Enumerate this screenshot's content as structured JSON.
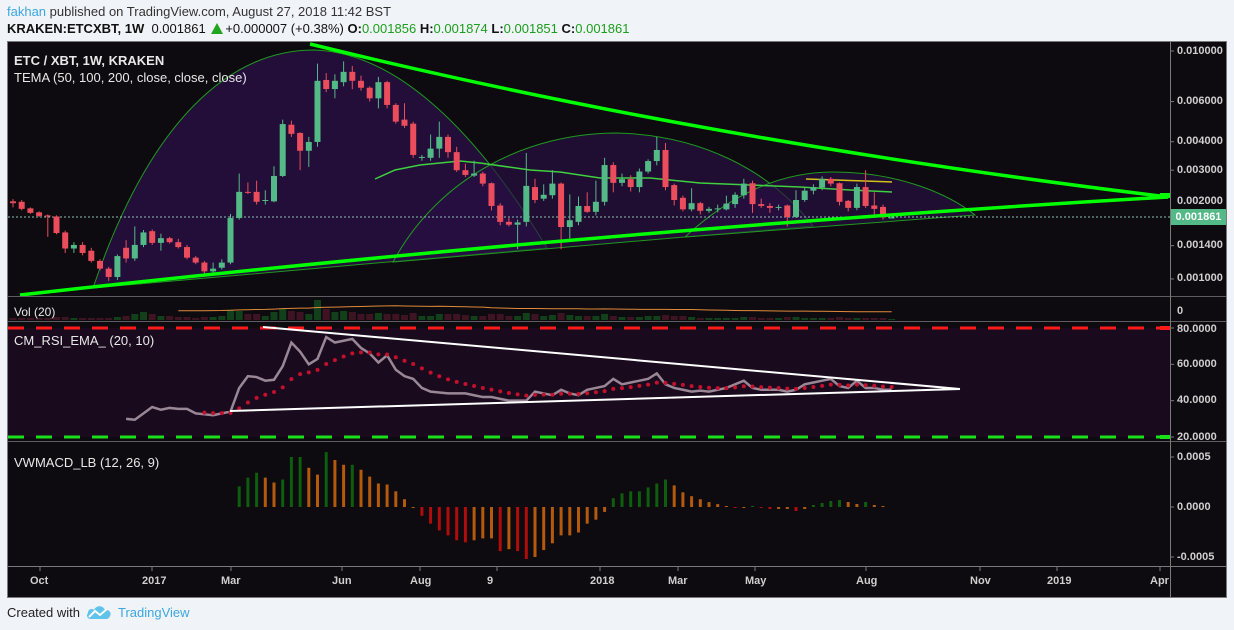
{
  "header": {
    "author": "fakhan",
    "published_text": "published on TradingView.com, August 27, 2018 11:42 BST",
    "symbol": "KRAKEN:ETCXBT, 1W",
    "last": "0.001861",
    "change": "+0.000007 (+0.38%)",
    "o_label": "O:",
    "o": "0.001856",
    "h_label": "H:",
    "h": "0.001874",
    "l_label": "L:",
    "l": "0.001851",
    "c_label": "C:",
    "c": "0.001861"
  },
  "panes": {
    "price_title": "ETC / XBT, 1W, KRAKEN",
    "tema_title": "TEMA (50, 100, 200, close, close, close)",
    "vol_title": "Vol (20)",
    "rsi_title": "CM_RSI_EMA_ (20, 10)",
    "macd_title": "VWMACD_LB (12, 26, 9)"
  },
  "footer": {
    "created_with": "Created with",
    "brand": "TradingView",
    "logo_icon": "tradingview-cloud-icon"
  },
  "colors": {
    "up": "#53b987",
    "down": "#eb4d5c",
    "trendline": "#00ff00",
    "tema": "#3fcf3f",
    "rsi_line": "#9a8796",
    "rsi_ema": "#c3102c",
    "rsi_upper": "#ff1a1a",
    "rsi_lower": "#1adf1a",
    "macd_up": "#0d5e0d",
    "macd_fade": "#b45a0c",
    "macd_down": "#b00c0c",
    "price_tag": "#53b987"
  },
  "chart_data": {
    "type": "candlestick",
    "interval": "1W",
    "price_scale": "log",
    "x_tick_labels": [
      "Oct",
      "2017",
      "Mar",
      "Jun",
      "Aug",
      "9",
      "2018",
      "Mar",
      "May",
      "Aug",
      "Nov",
      "2019",
      "Apr"
    ],
    "price_ticks": [
      "0.010000",
      "0.006000",
      "0.004000",
      "0.003000",
      "0.002000",
      "0.001400",
      "0.001000"
    ],
    "price_tick_values": [
      0.01,
      0.006,
      0.004,
      0.003,
      0.002,
      0.0014,
      0.001
    ],
    "current_price": "0.001861",
    "current_price_value": 0.001861,
    "ohlc": [
      [
        0.00219,
        0.00224,
        0.00206,
        0.00215
      ],
      [
        0.00218,
        0.00222,
        0.002,
        0.00203
      ],
      [
        0.00204,
        0.00206,
        0.00193,
        0.00195
      ],
      [
        0.00196,
        0.00198,
        0.00187,
        0.00189
      ],
      [
        0.0019,
        0.00192,
        0.00153,
        0.00188
      ],
      [
        0.00188,
        0.0019,
        0.00157,
        0.00159
      ],
      [
        0.0016,
        0.00163,
        0.0013,
        0.00136
      ],
      [
        0.00136,
        0.00145,
        0.0013,
        0.00141
      ],
      [
        0.00141,
        0.00145,
        0.00127,
        0.0013
      ],
      [
        0.00133,
        0.00137,
        0.00118,
        0.0012
      ],
      [
        0.0012,
        0.00122,
        0.00109,
        0.00111
      ],
      [
        0.00111,
        0.00113,
        0.00098,
        0.00102
      ],
      [
        0.00102,
        0.00128,
        0.00099,
        0.00126
      ],
      [
        0.00137,
        0.00148,
        0.00118,
        0.00123
      ],
      [
        0.00123,
        0.0017,
        0.0012,
        0.00141
      ],
      [
        0.00141,
        0.00164,
        0.00138,
        0.0016
      ],
      [
        0.00162,
        0.00165,
        0.00141,
        0.00144
      ],
      [
        0.00144,
        0.00158,
        0.00133,
        0.00151
      ],
      [
        0.00151,
        0.00153,
        0.00143,
        0.00145
      ],
      [
        0.00145,
        0.0015,
        0.00136,
        0.00138
      ],
      [
        0.00138,
        0.00141,
        0.00122,
        0.00124
      ],
      [
        0.00124,
        0.00126,
        0.00116,
        0.00118
      ],
      [
        0.00118,
        0.0012,
        0.00104,
        0.00108
      ],
      [
        0.00108,
        0.00118,
        0.00106,
        0.00111
      ],
      [
        0.00112,
        0.00122,
        0.0011,
        0.00118
      ],
      [
        0.00118,
        0.00193,
        0.00116,
        0.00185
      ],
      [
        0.00185,
        0.0029,
        0.00182,
        0.00241
      ],
      [
        0.00241,
        0.00265,
        0.00236,
        0.0024
      ],
      [
        0.00241,
        0.0027,
        0.00212,
        0.00218
      ],
      [
        0.0022,
        0.00245,
        0.00212,
        0.00222
      ],
      [
        0.00219,
        0.00312,
        0.00217,
        0.00283
      ],
      [
        0.00283,
        0.005,
        0.0028,
        0.00478
      ],
      [
        0.00475,
        0.00495,
        0.0042,
        0.00433
      ],
      [
        0.00437,
        0.0044,
        0.003,
        0.00365
      ],
      [
        0.00365,
        0.0042,
        0.0031,
        0.00399
      ],
      [
        0.00399,
        0.0088,
        0.0038,
        0.0074
      ],
      [
        0.00746,
        0.008,
        0.0066,
        0.00681
      ],
      [
        0.00681,
        0.0079,
        0.0062,
        0.0074
      ],
      [
        0.0073,
        0.009,
        0.007,
        0.0081
      ],
      [
        0.0081,
        0.0086,
        0.0068,
        0.0074
      ],
      [
        0.0074,
        0.0078,
        0.0067,
        0.0069
      ],
      [
        0.0069,
        0.007,
        0.006,
        0.0062
      ],
      [
        0.0062,
        0.0077,
        0.0056,
        0.0073
      ],
      [
        0.0073,
        0.0074,
        0.0056,
        0.0058
      ],
      [
        0.0058,
        0.0059,
        0.0048,
        0.0049
      ],
      [
        0.005,
        0.0059,
        0.0046,
        0.0047
      ],
      [
        0.0048,
        0.0049,
        0.0034,
        0.0035
      ],
      [
        0.00343,
        0.0035,
        0.0033,
        0.00343
      ],
      [
        0.0034,
        0.0043,
        0.0033,
        0.00373
      ],
      [
        0.00373,
        0.0049,
        0.0034,
        0.0042
      ],
      [
        0.0042,
        0.0043,
        0.0034,
        0.0036
      ],
      [
        0.0036,
        0.0038,
        0.00295,
        0.003
      ],
      [
        0.003,
        0.0032,
        0.0028,
        0.00286
      ],
      [
        0.00284,
        0.0033,
        0.0028,
        0.0029
      ],
      [
        0.0029,
        0.00295,
        0.00255,
        0.00262
      ],
      [
        0.00263,
        0.00265,
        0.002,
        0.00209
      ],
      [
        0.0021,
        0.00215,
        0.00172,
        0.00178
      ],
      [
        0.00178,
        0.00185,
        0.0017,
        0.00173
      ],
      [
        0.00173,
        0.00182,
        0.00135,
        0.00177
      ],
      [
        0.00178,
        0.00357,
        0.0017,
        0.00256
      ],
      [
        0.00253,
        0.00275,
        0.00215,
        0.00222
      ],
      [
        0.00225,
        0.0026,
        0.0022,
        0.00234
      ],
      [
        0.00233,
        0.003,
        0.00225,
        0.00262
      ],
      [
        0.00262,
        0.00265,
        0.00135,
        0.00169
      ],
      [
        0.00169,
        0.00235,
        0.0015,
        0.00181
      ],
      [
        0.00178,
        0.0023,
        0.00172,
        0.00209
      ],
      [
        0.00209,
        0.0024,
        0.00195,
        0.00197
      ],
      [
        0.00197,
        0.0027,
        0.0019,
        0.00218
      ],
      [
        0.00218,
        0.0034,
        0.0021,
        0.00316
      ],
      [
        0.00316,
        0.00325,
        0.0024,
        0.00264
      ],
      [
        0.00264,
        0.0029,
        0.00255,
        0.00274
      ],
      [
        0.00274,
        0.00285,
        0.00242,
        0.00253
      ],
      [
        0.00253,
        0.00305,
        0.0024,
        0.00296
      ],
      [
        0.00296,
        0.00335,
        0.0029,
        0.00329
      ],
      [
        0.00329,
        0.0042,
        0.00315,
        0.00368
      ],
      [
        0.00368,
        0.00395,
        0.00245,
        0.00253
      ],
      [
        0.00258,
        0.00262,
        0.0021,
        0.00222
      ],
      [
        0.00227,
        0.00232,
        0.00198,
        0.00202
      ],
      [
        0.00202,
        0.0025,
        0.00198,
        0.00215
      ],
      [
        0.00215,
        0.00218,
        0.00192,
        0.00199
      ],
      [
        0.00199,
        0.00207,
        0.00195,
        0.00203
      ],
      [
        0.00202,
        0.00212,
        0.00196,
        0.00204
      ],
      [
        0.00202,
        0.00232,
        0.002,
        0.00214
      ],
      [
        0.00213,
        0.0024,
        0.00205,
        0.00234
      ],
      [
        0.00233,
        0.00275,
        0.00225,
        0.00262
      ],
      [
        0.00263,
        0.0027,
        0.00195,
        0.00213
      ],
      [
        0.00213,
        0.00225,
        0.00205,
        0.00209
      ],
      [
        0.00209,
        0.00215,
        0.00195,
        0.00205
      ],
      [
        0.00205,
        0.00212,
        0.002,
        0.00207
      ],
      [
        0.0021,
        0.00212,
        0.0017,
        0.00187
      ],
      [
        0.00187,
        0.00245,
        0.00185,
        0.00222
      ],
      [
        0.00222,
        0.00252,
        0.00218,
        0.00244
      ],
      [
        0.00244,
        0.0026,
        0.00235,
        0.00253
      ],
      [
        0.00252,
        0.00282,
        0.00245,
        0.00275
      ],
      [
        0.00275,
        0.0028,
        0.00255,
        0.00262
      ],
      [
        0.00263,
        0.00265,
        0.0021,
        0.00218
      ],
      [
        0.0022,
        0.00222,
        0.00198,
        0.00205
      ],
      [
        0.00205,
        0.00262,
        0.002,
        0.00253
      ],
      [
        0.00253,
        0.003,
        0.00205,
        0.00209
      ],
      [
        0.0021,
        0.0024,
        0.00185,
        0.00203
      ],
      [
        0.00207,
        0.00212,
        0.00182,
        0.00186
      ],
      [
        0.001856,
        0.001874,
        0.001851,
        0.001861
      ]
    ],
    "volume": {
      "axis_label": "0",
      "volume_relative": [
        0.1,
        0.1,
        0.1,
        0.1,
        0.1,
        0.15,
        0.15,
        0.1,
        0.1,
        0.1,
        0.1,
        0.1,
        0.15,
        0.2,
        0.3,
        0.4,
        0.3,
        0.2,
        0.2,
        0.15,
        0.15,
        0.1,
        0.15,
        0.15,
        0.2,
        0.5,
        0.45,
        0.3,
        0.3,
        0.2,
        0.4,
        0.55,
        0.45,
        0.4,
        0.3,
        1.0,
        0.55,
        0.4,
        0.45,
        0.4,
        0.3,
        0.3,
        0.35,
        0.3,
        0.3,
        0.25,
        0.35,
        0.2,
        0.2,
        0.3,
        0.3,
        0.3,
        0.25,
        0.2,
        0.2,
        0.3,
        0.3,
        0.2,
        0.2,
        0.35,
        0.3,
        0.2,
        0.25,
        0.35,
        0.25,
        0.2,
        0.2,
        0.2,
        0.3,
        0.2,
        0.15,
        0.15,
        0.15,
        0.2,
        0.2,
        0.25,
        0.2,
        0.2,
        0.15,
        0.1,
        0.1,
        0.1,
        0.1,
        0.1,
        0.15,
        0.15,
        0.1,
        0.1,
        0.1,
        0.15,
        0.15,
        0.1,
        0.1,
        0.1,
        0.1,
        0.15,
        0.1,
        0.1,
        0.1,
        0.1,
        0.1,
        0.05
      ]
    },
    "rsi": {
      "ticks": [
        "80.0000",
        "60.0000",
        "40.0000",
        "20.0000"
      ],
      "tick_values": [
        80,
        60,
        40,
        20
      ],
      "upper_level": 80,
      "lower_level": 20,
      "start_bar": 13,
      "values": [
        30,
        29.5,
        33,
        36.5,
        35,
        36,
        35.5,
        35.5,
        33,
        32.5,
        32,
        33,
        34,
        47,
        53.5,
        53,
        51,
        51.5,
        59,
        72,
        67,
        60,
        63,
        75,
        72,
        73,
        74,
        69,
        66,
        61,
        65,
        57,
        53.5,
        52,
        47,
        45,
        44.5,
        44,
        44,
        44,
        43,
        42,
        42,
        41,
        40,
        40,
        40,
        45,
        44,
        43,
        46,
        44,
        43,
        46,
        47,
        48,
        52,
        49,
        50,
        51,
        52,
        55,
        49,
        47,
        46,
        45,
        45.5,
        45,
        46,
        47,
        49,
        51,
        47,
        46,
        46,
        46,
        45,
        46,
        49,
        50,
        51,
        52,
        48,
        47,
        51,
        47,
        47,
        46,
        46
      ]
    },
    "macd": {
      "ticks": [
        "0.0005",
        "0.0000",
        "-0.0005"
      ],
      "tick_values": [
        0.0005,
        0,
        -0.0005
      ],
      "start_bar": 26,
      "histogram": [
        0.000206,
        0.000294,
        0.000343,
        0.000294,
        0.000245,
        0.000275,
        0.0005,
        0.0005,
        0.000392,
        0.000324,
        0.000549,
        0.00047,
        0.000422,
        0.000422,
        0.000373,
        0.000304,
        0.000235,
        0.000225,
        0.000157,
        7.8e-05,
        0,
        -8.8e-05,
        -0.000167,
        -0.000235,
        -0.000284,
        -0.000333,
        -0.000353,
        -0.000333,
        -0.000314,
        -0.000314,
        -0.000441,
        -0.000422,
        -0.000441,
        -0.00052,
        -0.0005,
        -0.000431,
        -0.000363,
        -0.000284,
        -0.000284,
        -0.000255,
        -0.000167,
        -0.000127,
        -4.9e-05,
        8.8e-05,
        0.000137,
        0.000157,
        0.000157,
        0.000196,
        0.000235,
        0.000275,
        0.000216,
        0.000147,
        0.000108,
        7.8e-05,
        4.9e-05,
        2.9e-05,
        1e-05,
        -1e-05,
        -1e-05,
        1e-05,
        -1e-05,
        -2e-05,
        -2e-05,
        -2e-05,
        -4e-05,
        -2e-05,
        2e-05,
        4e-05,
        6e-05,
        7e-05,
        5e-05,
        3e-05,
        5e-05,
        2e-05,
        1e-05
      ]
    }
  }
}
